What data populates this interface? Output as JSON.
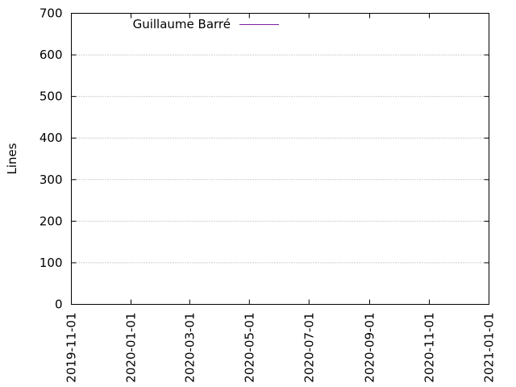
{
  "chart_data": {
    "type": "line",
    "title": "",
    "xlabel": "",
    "ylabel": "Lines",
    "xlim": [
      "2019-11-01",
      "2021-01-01"
    ],
    "ylim": [
      0,
      700
    ],
    "x_ticks": [
      "2019-11-01",
      "2020-01-01",
      "2020-03-01",
      "2020-05-01",
      "2020-07-01",
      "2020-09-01",
      "2020-11-01",
      "2021-01-01"
    ],
    "y_ticks": [
      0,
      100,
      200,
      300,
      400,
      500,
      600,
      700
    ],
    "grid": "horizontal dotted",
    "legend_position": "top-left",
    "series": [
      {
        "name": "Guillaume Barré",
        "color": "#7a1fa2",
        "x": [],
        "y": []
      }
    ]
  }
}
